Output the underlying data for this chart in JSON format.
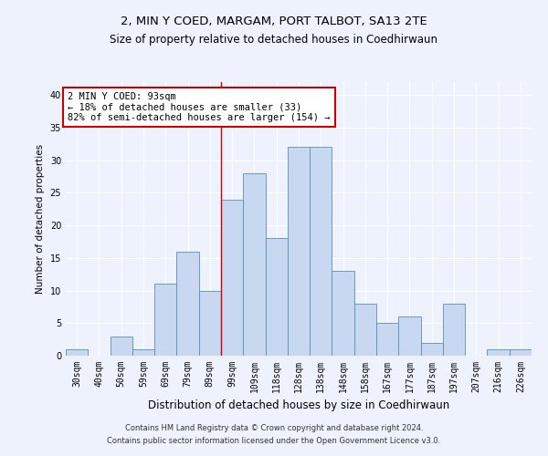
{
  "title1": "2, MIN Y COED, MARGAM, PORT TALBOT, SA13 2TE",
  "title2": "Size of property relative to detached houses in Coedhirwaun",
  "xlabel": "Distribution of detached houses by size in Coedhirwaun",
  "ylabel": "Number of detached properties",
  "footer1": "Contains HM Land Registry data © Crown copyright and database right 2024.",
  "footer2": "Contains public sector information licensed under the Open Government Licence v3.0.",
  "annotation_line1": "2 MIN Y COED: 93sqm",
  "annotation_line2": "← 18% of detached houses are smaller (33)",
  "annotation_line3": "82% of semi-detached houses are larger (154) →",
  "bar_color": "#c8d8f0",
  "bar_edge_color": "#5b8db8",
  "vline_color": "#cc0000",
  "vline_x": 6.5,
  "categories": [
    "30sqm",
    "40sqm",
    "50sqm",
    "59sqm",
    "69sqm",
    "79sqm",
    "89sqm",
    "99sqm",
    "109sqm",
    "118sqm",
    "128sqm",
    "138sqm",
    "148sqm",
    "158sqm",
    "167sqm",
    "177sqm",
    "187sqm",
    "197sqm",
    "207sqm",
    "216sqm",
    "226sqm"
  ],
  "values": [
    1,
    0,
    3,
    1,
    11,
    16,
    10,
    24,
    28,
    18,
    32,
    32,
    13,
    8,
    5,
    6,
    2,
    8,
    0,
    1,
    1
  ],
  "ylim": [
    0,
    42
  ],
  "yticks": [
    0,
    5,
    10,
    15,
    20,
    25,
    30,
    35,
    40
  ],
  "background_color": "#eef2fc",
  "plot_background": "#eef2fc",
  "grid_color": "#ffffff",
  "annotation_box_color": "#ffffff",
  "annotation_box_edge": "#cc0000",
  "title1_fontsize": 9.5,
  "title2_fontsize": 8.5,
  "ylabel_fontsize": 7.5,
  "xlabel_fontsize": 8.5,
  "tick_fontsize": 7,
  "footer_fontsize": 6,
  "annot_fontsize": 7.5
}
